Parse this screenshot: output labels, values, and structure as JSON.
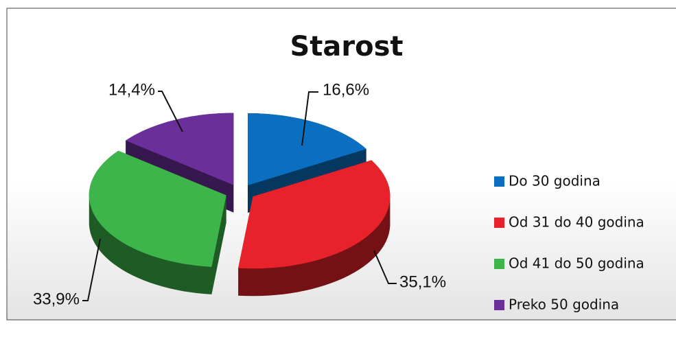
{
  "chart_data": {
    "type": "pie",
    "title": "Starost",
    "categories": [
      "Do 30 godina",
      "Od 31 do 40 godina",
      "Od 41 do 50 godina",
      "Preko 50 godina"
    ],
    "values": [
      16.6,
      35.1,
      33.9,
      14.4
    ],
    "value_labels": [
      "16,6%",
      "35,1%",
      "33,9%",
      "14,4%"
    ],
    "colors": [
      "#0a6fc0",
      "#e8222a",
      "#3db54a",
      "#6b2f9b"
    ],
    "legend": "right"
  }
}
